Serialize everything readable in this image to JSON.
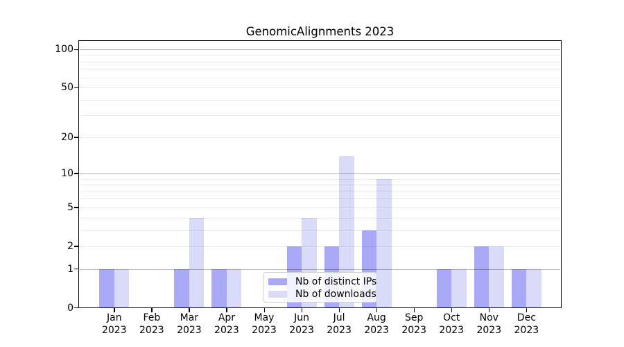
{
  "title": "GenomicAlignments 2023",
  "colors": {
    "distinct_ips": "#a9a9f8",
    "downloads": "#dadaf9",
    "grid_minor": "rgba(0,0,0,0.08)",
    "grid_major": "rgba(0,0,0,0.30)",
    "axis": "#000000"
  },
  "legend": {
    "entries": [
      {
        "label": "Nb of distinct IPs",
        "color": "#a9a9f8"
      },
      {
        "label": "Nb of downloads",
        "color": "#dadaf9"
      }
    ]
  },
  "y_axis": {
    "tick_labels": [
      "0",
      "1",
      "2",
      "5",
      "10",
      "20",
      "50",
      "100"
    ]
  },
  "chart_data": {
    "type": "bar",
    "title": "GenomicAlignments 2023",
    "categories": [
      "Jan 2023",
      "Feb 2023",
      "Mar 2023",
      "Apr 2023",
      "May 2023",
      "Jun 2023",
      "Jul 2023",
      "Aug 2023",
      "Sep 2023",
      "Oct 2023",
      "Nov 2023",
      "Dec 2023"
    ],
    "series": [
      {
        "name": "Nb of distinct IPs",
        "color": "#a9a9f8",
        "values": [
          1,
          0,
          1,
          1,
          0,
          2,
          2,
          3,
          0,
          1,
          2,
          1
        ]
      },
      {
        "name": "Nb of downloads",
        "color": "#dadaf9",
        "values": [
          1,
          0,
          4,
          1,
          0,
          4,
          14,
          9,
          0,
          1,
          2,
          1
        ]
      }
    ],
    "xlabel": "",
    "ylabel": "",
    "yscale": "log1p",
    "ylim": [
      0,
      100
    ],
    "yticks": [
      0,
      1,
      2,
      5,
      10,
      20,
      50,
      100
    ],
    "minor_gridlines": [
      2,
      3,
      4,
      5,
      6,
      7,
      8,
      9,
      20,
      30,
      40,
      50,
      60,
      70,
      80,
      90
    ],
    "major_gridlines": [
      1,
      10,
      100
    ],
    "grid": "horizontal",
    "legend_position": "lower center"
  }
}
